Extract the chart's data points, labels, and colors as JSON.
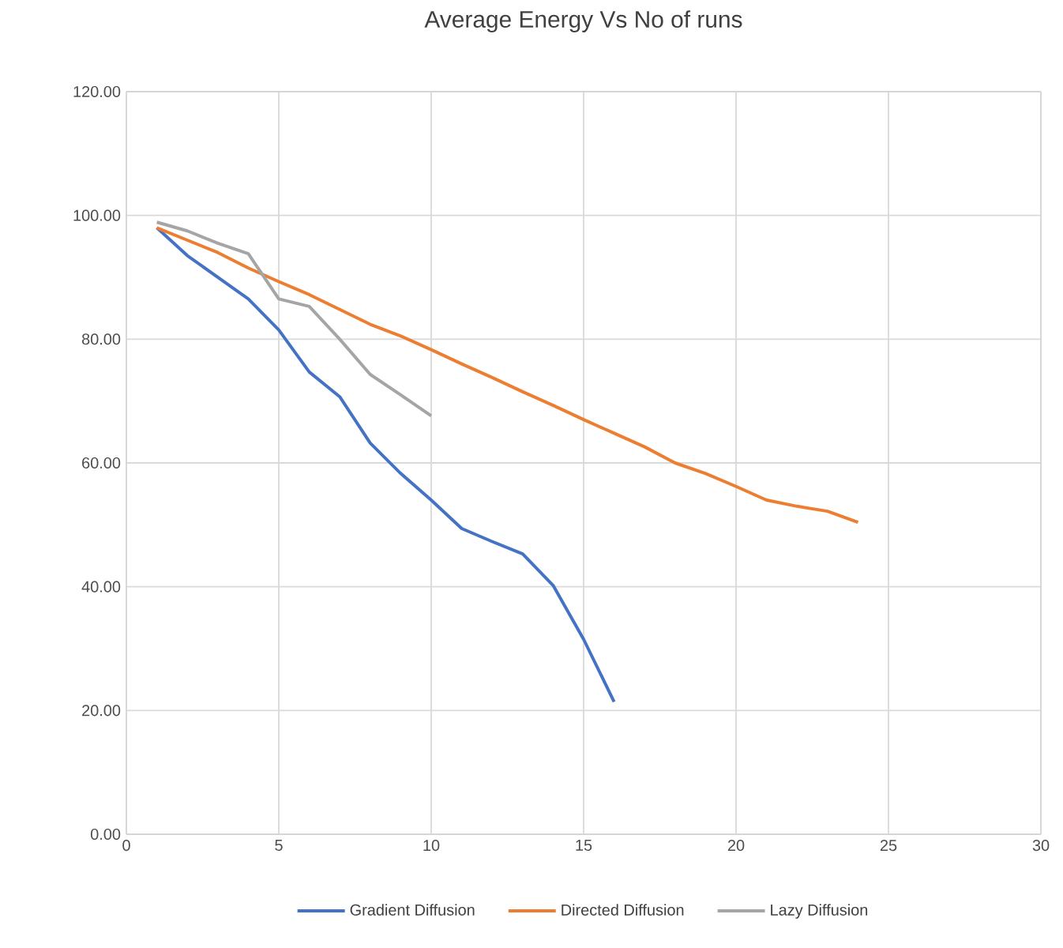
{
  "chart_data": {
    "type": "line",
    "title": "Average Energy Vs No of runs",
    "xlim": [
      0,
      30
    ],
    "xticks": [
      0,
      5,
      10,
      15,
      20,
      25,
      30
    ],
    "ylim": [
      0,
      120
    ],
    "yticks": [
      {
        "value": 0,
        "label": "0.00"
      },
      {
        "value": 20,
        "label": "20.00"
      },
      {
        "value": 40,
        "label": "40.00"
      },
      {
        "value": 60,
        "label": "60.00"
      },
      {
        "value": 80,
        "label": "80.00"
      },
      {
        "value": 100,
        "label": "100.00"
      },
      {
        "value": 120,
        "label": "120.00"
      }
    ],
    "grid": true,
    "legend": "bottom",
    "series": [
      {
        "name": "Gradient Diffusion",
        "color": "#4472c4",
        "x": [
          1,
          2,
          3,
          4,
          5,
          6,
          7,
          8,
          9,
          10,
          11,
          12,
          13,
          14,
          15,
          16
        ],
        "values": [
          98,
          93.5,
          90,
          86.5,
          81.5,
          74.7,
          70.7,
          63.2,
          58.3,
          54,
          49.4,
          47.3,
          45.3,
          40.2,
          31.5,
          21.4
        ]
      },
      {
        "name": "Directed Diffusion",
        "color": "#ed7d31",
        "x": [
          1,
          2,
          3,
          4,
          5,
          6,
          7,
          8,
          9,
          10,
          11,
          12,
          13,
          14,
          15,
          16,
          17,
          18,
          19,
          20,
          21,
          22,
          23,
          24
        ],
        "values": [
          98,
          96,
          94,
          91.5,
          89.3,
          87.2,
          84.8,
          82.4,
          80.5,
          78.3,
          76,
          73.8,
          71.5,
          69.3,
          67,
          64.8,
          62.6,
          60,
          58.3,
          56.2,
          54,
          53,
          52.2,
          50.4
        ]
      },
      {
        "name": "Lazy Diffusion",
        "color": "#a5a5a5",
        "x": [
          1,
          2,
          3,
          4,
          5,
          6,
          7,
          8,
          9,
          10
        ],
        "values": [
          98.9,
          97.5,
          95.5,
          93.8,
          86.5,
          85.3,
          80,
          74.3,
          71,
          67.6
        ]
      }
    ]
  }
}
